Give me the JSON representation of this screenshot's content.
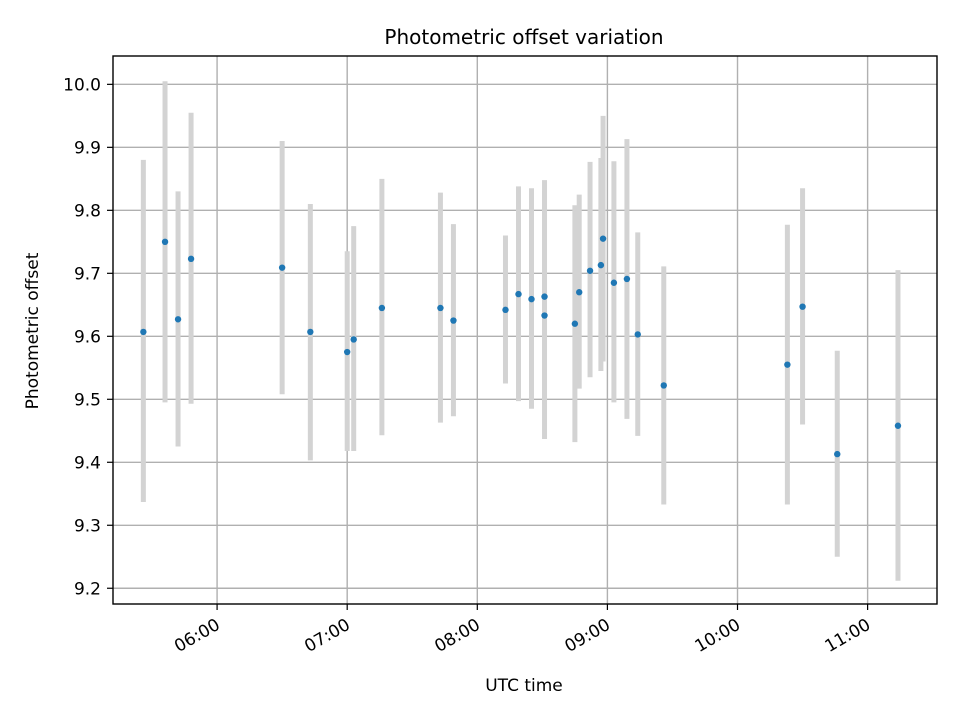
{
  "chart_data": {
    "type": "scatter",
    "title": "Photometric offset variation",
    "xlabel": "UTC time",
    "ylabel": "Photometric offset",
    "x_axis": "time",
    "xlim": [
      "05:12",
      "11:32"
    ],
    "ylim": [
      9.175,
      10.045
    ],
    "xticks": [
      "06:00",
      "07:00",
      "08:00",
      "09:00",
      "10:00",
      "11:00"
    ],
    "yticks": [
      "9.2",
      "9.3",
      "9.4",
      "9.5",
      "9.6",
      "9.7",
      "9.8",
      "9.9",
      "10.0"
    ],
    "grid": true,
    "marker_color": "#1f77b4",
    "errorbar_color": "#d3d3d3",
    "points": [
      {
        "x": "05:26",
        "y": 9.607,
        "low": 9.337,
        "high": 9.88
      },
      {
        "x": "05:36",
        "y": 9.75,
        "low": 9.495,
        "high": 10.005
      },
      {
        "x": "05:42",
        "y": 9.627,
        "low": 9.425,
        "high": 9.83
      },
      {
        "x": "05:48",
        "y": 9.723,
        "low": 9.493,
        "high": 9.955
      },
      {
        "x": "06:30",
        "y": 9.709,
        "low": 9.508,
        "high": 9.91
      },
      {
        "x": "06:43",
        "y": 9.607,
        "low": 9.403,
        "high": 9.81
      },
      {
        "x": "07:00",
        "y": 9.575,
        "low": 9.418,
        "high": 9.735
      },
      {
        "x": "07:03",
        "y": 9.595,
        "low": 9.418,
        "high": 9.775
      },
      {
        "x": "07:16",
        "y": 9.645,
        "low": 9.443,
        "high": 9.85
      },
      {
        "x": "07:43",
        "y": 9.645,
        "low": 9.463,
        "high": 9.828
      },
      {
        "x": "07:49",
        "y": 9.625,
        "low": 9.473,
        "high": 9.778
      },
      {
        "x": "08:13",
        "y": 9.642,
        "low": 9.525,
        "high": 9.76
      },
      {
        "x": "08:19",
        "y": 9.667,
        "low": 9.497,
        "high": 9.838
      },
      {
        "x": "08:25",
        "y": 9.659,
        "low": 9.485,
        "high": 9.835
      },
      {
        "x": "08:31",
        "y": 9.663,
        "low": 9.493,
        "high": 9.83
      },
      {
        "x": "08:31",
        "y": 9.633,
        "low": 9.437,
        "high": 9.848
      },
      {
        "x": "08:45",
        "y": 9.62,
        "low": 9.432,
        "high": 9.808
      },
      {
        "x": "08:47",
        "y": 9.67,
        "low": 9.517,
        "high": 9.825
      },
      {
        "x": "08:52",
        "y": 9.704,
        "low": 9.535,
        "high": 9.877
      },
      {
        "x": "08:57",
        "y": 9.713,
        "low": 9.545,
        "high": 9.883
      },
      {
        "x": "08:58",
        "y": 9.755,
        "low": 9.56,
        "high": 9.95
      },
      {
        "x": "09:03",
        "y": 9.685,
        "low": 9.495,
        "high": 9.878
      },
      {
        "x": "09:09",
        "y": 9.691,
        "low": 9.469,
        "high": 9.913
      },
      {
        "x": "09:14",
        "y": 9.603,
        "low": 9.442,
        "high": 9.765
      },
      {
        "x": "09:26",
        "y": 9.522,
        "low": 9.333,
        "high": 9.711
      },
      {
        "x": "10:23",
        "y": 9.555,
        "low": 9.333,
        "high": 9.777
      },
      {
        "x": "10:30",
        "y": 9.647,
        "low": 9.46,
        "high": 9.835
      },
      {
        "x": "10:46",
        "y": 9.413,
        "low": 9.25,
        "high": 9.577
      },
      {
        "x": "11:14",
        "y": 9.458,
        "low": 9.212,
        "high": 9.705
      }
    ]
  }
}
